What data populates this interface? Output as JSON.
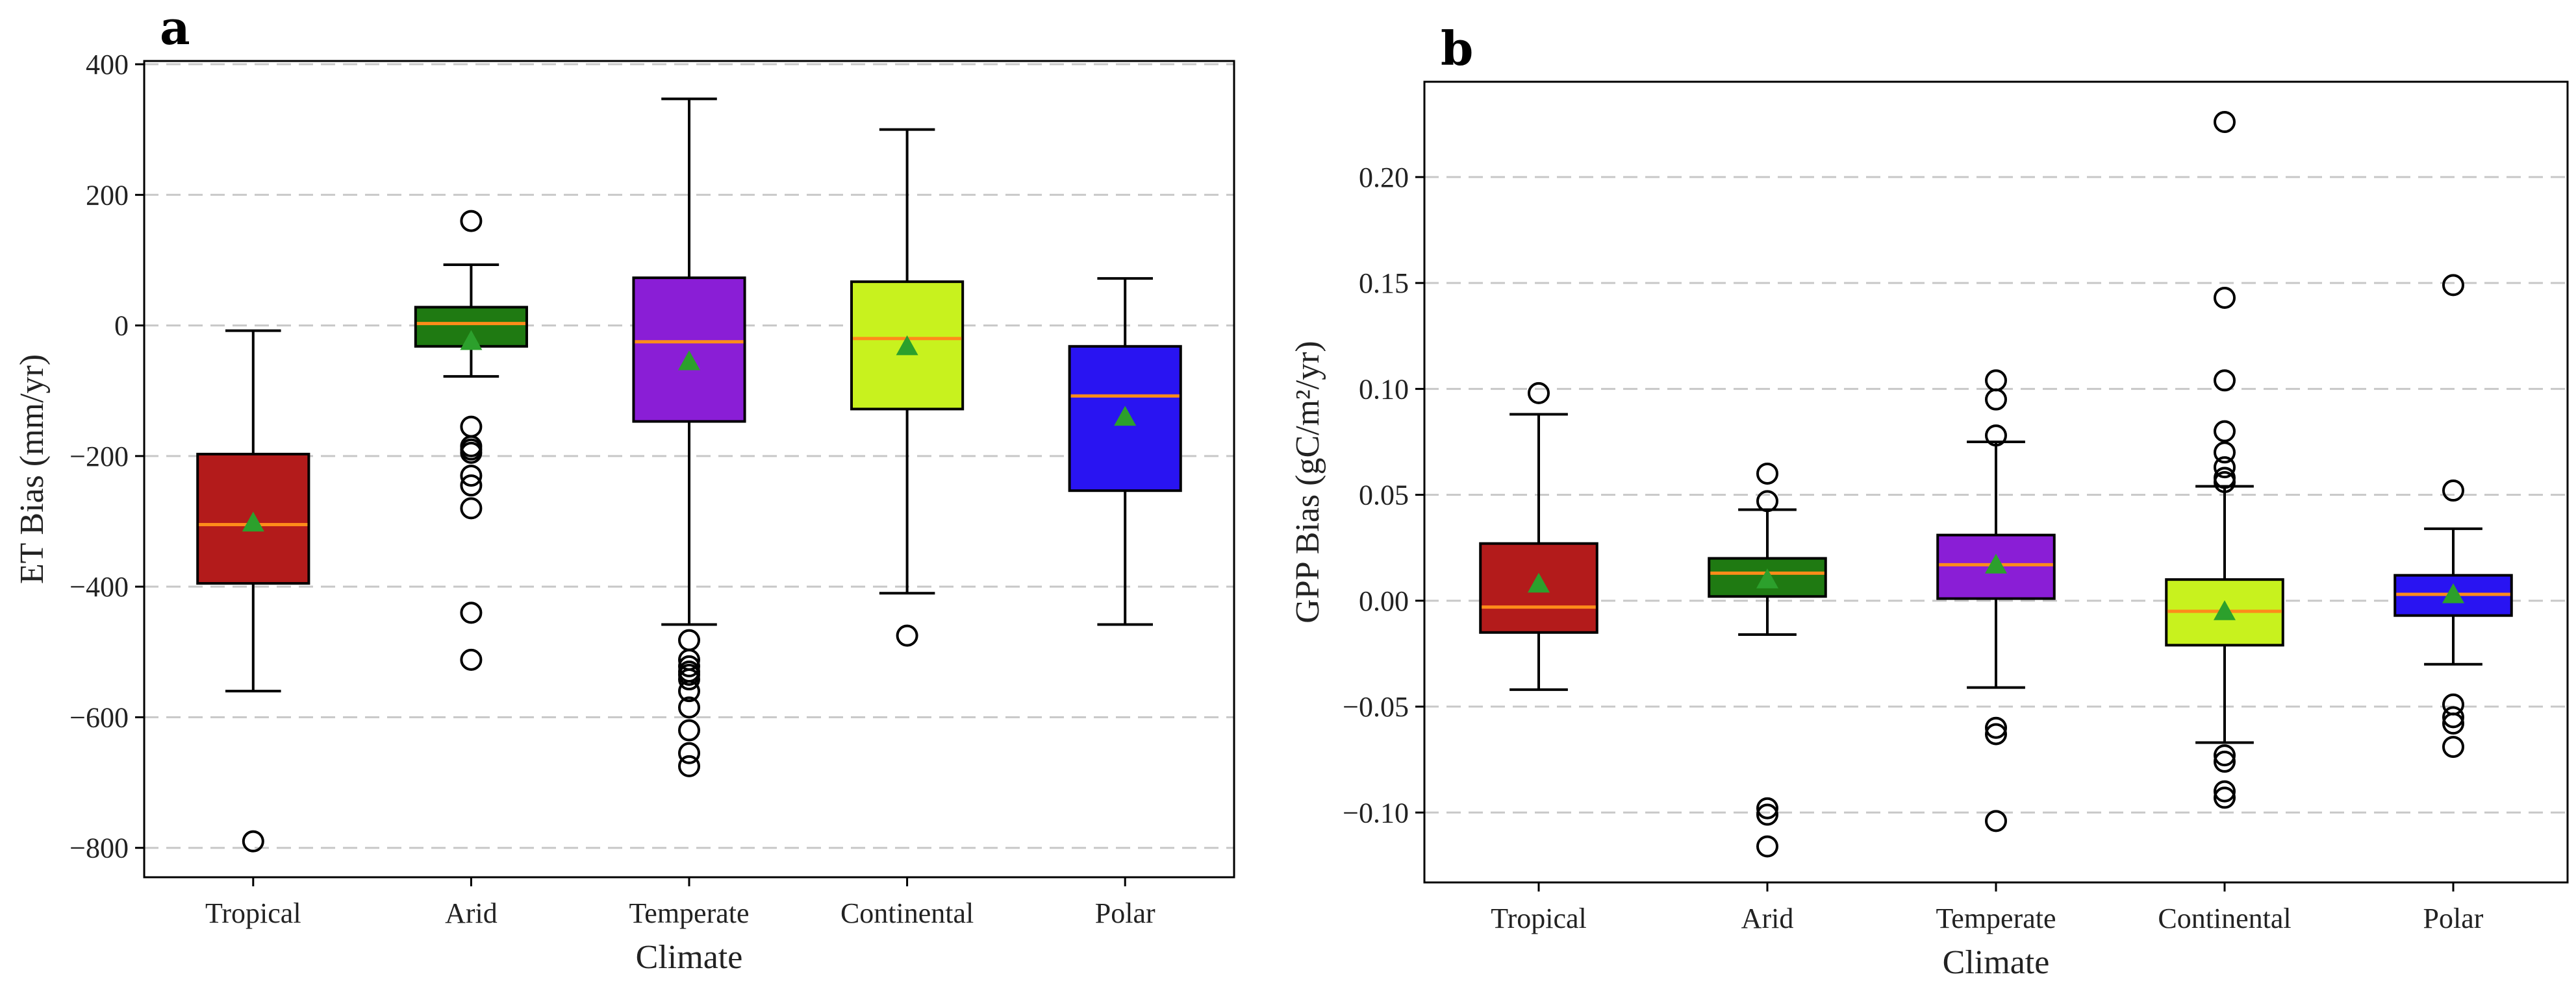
{
  "chart_data": [
    {
      "panel_label": "a",
      "type": "box",
      "xlabel": "Climate",
      "ylabel": "ET Bias (mm/yr)",
      "ylim": [
        -845,
        405
      ],
      "yticks": [
        400,
        200,
        0,
        -200,
        -400,
        -600,
        -800
      ],
      "ytick_labels": [
        "400",
        "200",
        "0",
        "−200",
        "−400",
        "−600",
        "−800"
      ],
      "grid": "horizontal-dashed",
      "categories": [
        "Tropical",
        "Arid",
        "Temperate",
        "Continental",
        "Polar"
      ],
      "boxes": [
        {
          "name": "Tropical",
          "color": "#b31b1b",
          "whislo": -560,
          "q1": -395,
          "median": -305,
          "q3": -197,
          "whishi": -8,
          "mean": -302,
          "fliers": [
            -790
          ]
        },
        {
          "name": "Arid",
          "color": "#1f7a12",
          "whislo": -78,
          "q1": -32,
          "median": 3,
          "q3": 28,
          "whishi": 93,
          "mean": -24,
          "fliers": [
            160,
            -155,
            -185,
            -190,
            -195,
            -230,
            -245,
            -280,
            -440,
            -512
          ]
        },
        {
          "name": "Temperate",
          "color": "#8a1ed6",
          "whislo": -458,
          "q1": -147,
          "median": -25,
          "q3": 73,
          "whishi": 347,
          "mean": -55,
          "fliers": [
            -482,
            -512,
            -522,
            -530,
            -535,
            -542,
            -560,
            -585,
            -620,
            -655,
            -675
          ]
        },
        {
          "name": "Continental",
          "color": "#c8f21e",
          "whislo": -410,
          "q1": -128,
          "median": -20,
          "q3": 67,
          "whishi": 300,
          "mean": -32,
          "fliers": [
            -475
          ]
        },
        {
          "name": "Polar",
          "color": "#2914f2",
          "whislo": -458,
          "q1": -253,
          "median": -108,
          "q3": -32,
          "whishi": 72,
          "mean": -140,
          "fliers": []
        }
      ]
    },
    {
      "panel_label": "b",
      "type": "box",
      "xlabel": "Climate",
      "ylabel": "GPP Bias (gC/m²/yr)",
      "ylim": [
        -0.133,
        0.245
      ],
      "yticks": [
        0.2,
        0.15,
        0.1,
        0.05,
        0.0,
        -0.05,
        -0.1
      ],
      "ytick_labels": [
        "0.20",
        "0.15",
        "0.10",
        "0.05",
        "0.00",
        "−0.05",
        "−0.10"
      ],
      "grid": "horizontal-dashed",
      "categories": [
        "Tropical",
        "Arid",
        "Temperate",
        "Continental",
        "Polar"
      ],
      "boxes": [
        {
          "name": "Tropical",
          "color": "#b31b1b",
          "whislo": -0.042,
          "q1": -0.015,
          "median": -0.003,
          "q3": 0.027,
          "whishi": 0.088,
          "mean": 0.008,
          "fliers": [
            0.098
          ]
        },
        {
          "name": "Arid",
          "color": "#1f7a12",
          "whislo": -0.016,
          "q1": 0.002,
          "median": 0.013,
          "q3": 0.02,
          "whishi": 0.043,
          "mean": 0.01,
          "fliers": [
            0.06,
            0.047,
            -0.098,
            -0.101,
            -0.116
          ]
        },
        {
          "name": "Temperate",
          "color": "#8a1ed6",
          "whislo": -0.041,
          "q1": 0.001,
          "median": 0.017,
          "q3": 0.031,
          "whishi": 0.075,
          "mean": 0.017,
          "fliers": [
            0.104,
            0.095,
            0.078,
            -0.06,
            -0.063,
            -0.104
          ]
        },
        {
          "name": "Continental",
          "color": "#c8f21e",
          "whislo": -0.067,
          "q1": -0.021,
          "median": -0.005,
          "q3": 0.01,
          "whishi": 0.054,
          "mean": -0.005,
          "fliers": [
            0.226,
            0.143,
            0.104,
            0.08,
            0.07,
            0.063,
            0.058,
            0.056,
            -0.073,
            -0.076,
            -0.09,
            -0.093
          ]
        },
        {
          "name": "Polar",
          "color": "#2914f2",
          "whislo": -0.03,
          "q1": -0.007,
          "median": 0.003,
          "q3": 0.012,
          "whishi": 0.034,
          "mean": 0.003,
          "fliers": [
            0.149,
            0.052,
            -0.049,
            -0.055,
            -0.058,
            -0.069
          ]
        }
      ]
    }
  ]
}
